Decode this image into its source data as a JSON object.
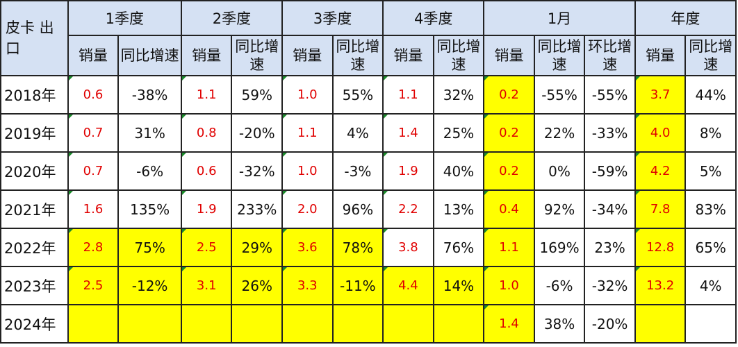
{
  "header": {
    "corner": "皮卡 出口",
    "groups": [
      "1季度",
      "2季度",
      "3季度",
      "4季度",
      "1月",
      "年度"
    ],
    "sub": [
      "销量",
      "同比增速",
      "销量",
      "同比增速",
      "销量",
      "同比增速",
      "销量",
      "同比增速",
      "销量",
      "同比增速",
      "环比增速",
      "销量",
      "同比增速"
    ]
  },
  "rows": [
    {
      "year": "2018年",
      "cells": [
        "0.6",
        "-38%",
        "1.1",
        "59%",
        "1.0",
        "55%",
        "1.1",
        "32%",
        "0.2",
        "-55%",
        "-55%",
        "3.7",
        "44%"
      ]
    },
    {
      "year": "2019年",
      "cells": [
        "0.7",
        "31%",
        "0.8",
        "-20%",
        "1.1",
        "4%",
        "1.4",
        "25%",
        "0.2",
        "22%",
        "-33%",
        "4.0",
        "8%"
      ]
    },
    {
      "year": "2020年",
      "cells": [
        "0.7",
        "-6%",
        "0.6",
        "-32%",
        "1.0",
        "-3%",
        "1.9",
        "40%",
        "0.2",
        "0%",
        "-59%",
        "4.2",
        "5%"
      ]
    },
    {
      "year": "2021年",
      "cells": [
        "1.6",
        "135%",
        "1.9",
        "233%",
        "2.0",
        "96%",
        "2.2",
        "13%",
        "0.4",
        "92%",
        "-34%",
        "7.8",
        "83%"
      ]
    },
    {
      "year": "2022年",
      "cells": [
        "2.8",
        "75%",
        "2.5",
        "29%",
        "3.6",
        "78%",
        "3.8",
        "76%",
        "1.1",
        "169%",
        "23%",
        "12.8",
        "65%"
      ]
    },
    {
      "year": "2023年",
      "cells": [
        "2.5",
        "-12%",
        "3.1",
        "26%",
        "3.3",
        "-11%",
        "4.4",
        "14%",
        "1.0",
        "-6%",
        "-32%",
        "13.2",
        "4%"
      ]
    },
    {
      "year": "2024年",
      "cells": [
        "",
        "",
        "",
        "",
        "",
        "",
        "",
        "",
        "1.4",
        "38%",
        "-20%",
        "",
        ""
      ]
    }
  ],
  "colors": {
    "header_bg": "#d5e1f3",
    "highlight": "#ffff00",
    "volume_text": "#e00000"
  }
}
